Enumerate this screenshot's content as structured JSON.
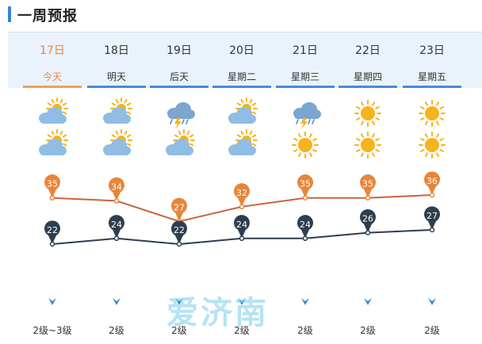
{
  "page": {
    "title": "一周预报"
  },
  "days": [
    {
      "date": "17日",
      "weekday": "今天",
      "today": true,
      "day_icon": "sun-cloud-icon",
      "night_icon": "sun-cloud-icon",
      "high": 35,
      "low": 22,
      "wind": "2级~3级"
    },
    {
      "date": "18日",
      "weekday": "明天",
      "today": false,
      "day_icon": "sun-cloud-icon",
      "night_icon": "sun-cloud-icon",
      "high": 34,
      "low": 24,
      "wind": "2级"
    },
    {
      "date": "19日",
      "weekday": "后天",
      "today": false,
      "day_icon": "thunder-rain-cloud-icon",
      "night_icon": "sun-cloud-icon",
      "high": 27,
      "low": 22,
      "wind": "2级"
    },
    {
      "date": "20日",
      "weekday": "星期二",
      "today": false,
      "day_icon": "sun-cloud-icon",
      "night_icon": "sun-cloud-icon",
      "high": 32,
      "low": 24,
      "wind": "2级"
    },
    {
      "date": "21日",
      "weekday": "星期三",
      "today": false,
      "day_icon": "thunder-rain-cloud-icon",
      "night_icon": "sun-icon",
      "high": 35,
      "low": 24,
      "wind": "2级"
    },
    {
      "date": "22日",
      "weekday": "星期四",
      "today": false,
      "day_icon": "sun-icon",
      "night_icon": "sun-icon",
      "high": 35,
      "low": 26,
      "wind": "2级"
    },
    {
      "date": "23日",
      "weekday": "星期五",
      "today": false,
      "day_icon": "sun-icon",
      "night_icon": "sun-icon",
      "high": 36,
      "low": 27,
      "wind": "2级"
    }
  ],
  "colors": {
    "high": "#e8853a",
    "high_line": "#c8643a",
    "low": "#2e3e50",
    "sun": "#f5b31c",
    "cloud": "#8fbde3",
    "wind_arrow": "#3a84d6"
  },
  "watermark": "爱济南"
}
